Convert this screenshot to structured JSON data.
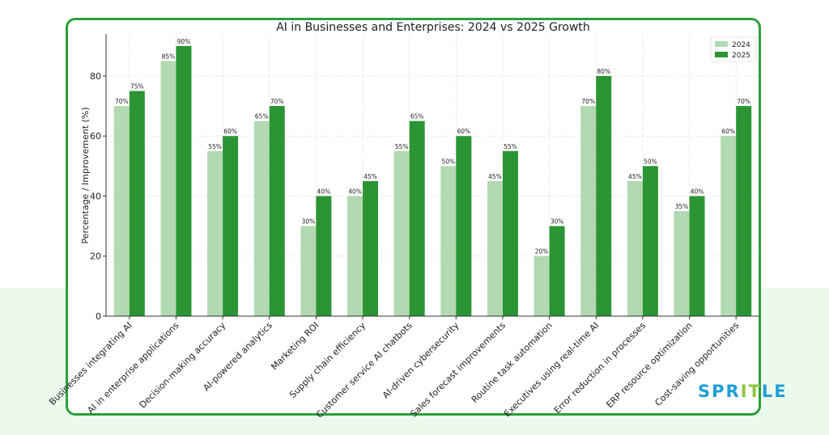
{
  "chart_data": {
    "type": "bar",
    "title": "AI in Businesses and Enterprises: 2024 vs 2025 Growth",
    "xlabel": "",
    "ylabel": "Percentage / Improvement (%)",
    "ylim": [
      0,
      94
    ],
    "yticks": [
      0,
      20,
      40,
      60,
      80
    ],
    "grid": true,
    "legend_position": "top-right",
    "categories": [
      "Businesses integrating AI",
      "AI in enterprise applications",
      "Decision-making accuracy",
      "AI-powered analytics",
      "Marketing ROI",
      "Supply chain efficiency",
      "Customer service AI chatbots",
      "AI-driven cybersecurity",
      "Sales forecast improvements",
      "Routine task automation",
      "Executives using real-time AI",
      "Error reduction in processes",
      "ERP resource optimization",
      "Cost-saving opportunities"
    ],
    "series": [
      {
        "name": "2024",
        "color": "#b2d9b2",
        "values": [
          70,
          85,
          55,
          65,
          30,
          40,
          55,
          50,
          45,
          20,
          70,
          45,
          35,
          60
        ]
      },
      {
        "name": "2025",
        "color": "#2b9534",
        "values": [
          75,
          90,
          60,
          70,
          40,
          45,
          65,
          60,
          55,
          30,
          80,
          50,
          40,
          70
        ]
      }
    ],
    "value_label_suffix": "%"
  },
  "brand": {
    "logo_text": "SPRITLE",
    "card_border_color": "#2e9e3c",
    "background_band_color": "#ebfaec"
  }
}
